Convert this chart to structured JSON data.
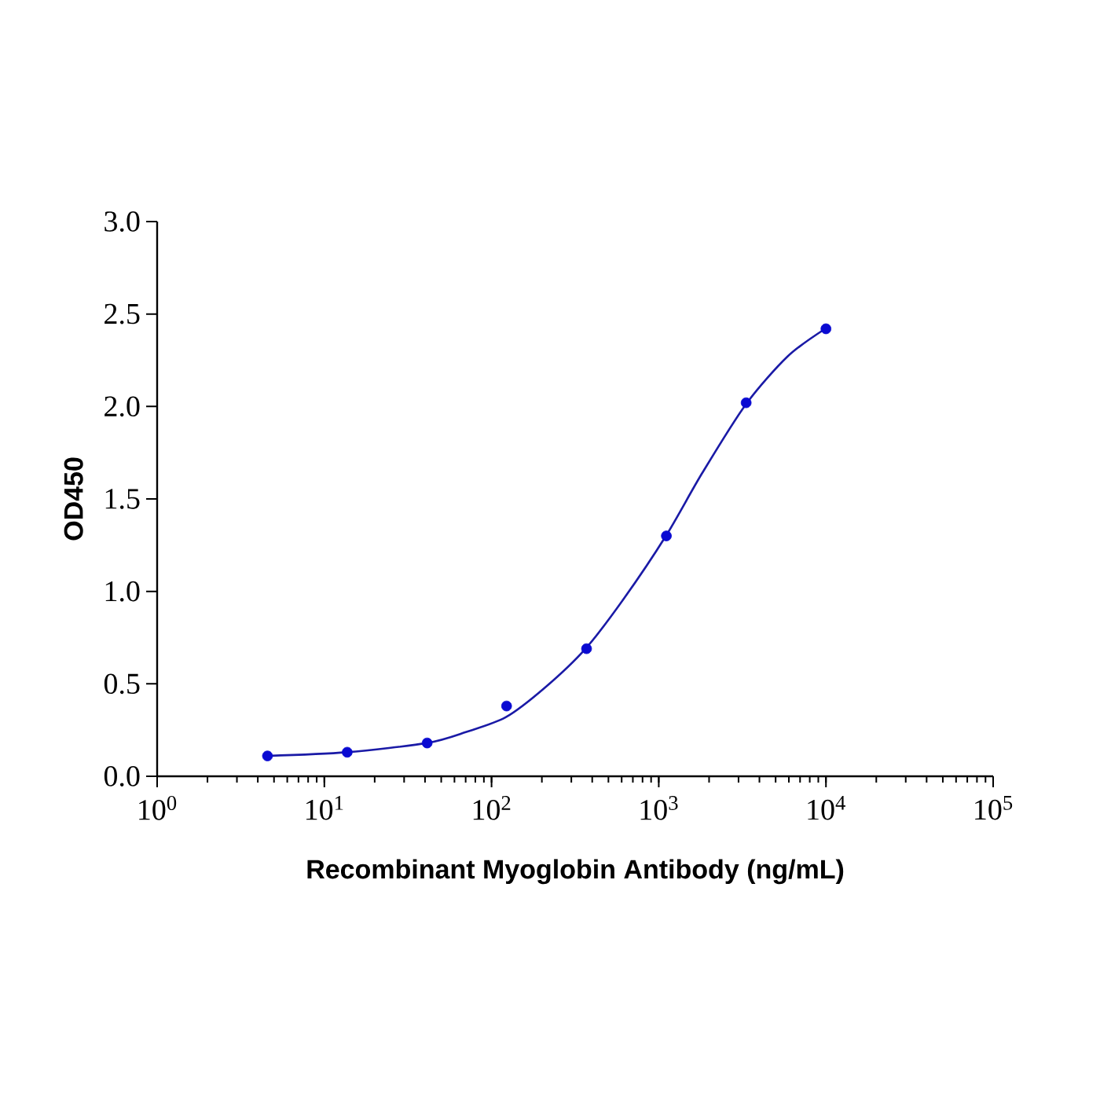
{
  "chart_data": {
    "type": "scatter",
    "xlabel": "Recombinant Myoglobin Antibody (ng/mL)",
    "ylabel": "OD450",
    "log": "x",
    "xlim": [
      1,
      100000
    ],
    "ylim": [
      0,
      3.0
    ],
    "xticks": [
      {
        "value": 1,
        "label": "10$^{0}$"
      },
      {
        "value": 10,
        "label": "10$^{1}$"
      },
      {
        "value": 100,
        "label": "10$^{2}$"
      },
      {
        "value": 1000,
        "label": "10$^{3}$"
      },
      {
        "value": 10000,
        "label": "10$^{4}$"
      },
      {
        "value": 100000,
        "label": "10$^{5}$"
      }
    ],
    "yticks": [
      {
        "value": 0,
        "label": "0.0"
      },
      {
        "value": 0.5,
        "label": "0.5"
      },
      {
        "value": 1.0,
        "label": "1.0"
      },
      {
        "value": 1.5,
        "label": "1.5"
      },
      {
        "value": 2.0,
        "label": "2.0"
      },
      {
        "value": 2.5,
        "label": "2.5"
      },
      {
        "value": 3.0,
        "label": "3.0"
      }
    ],
    "grid": false,
    "series": [
      {
        "type": "line",
        "marker": "none",
        "line_style": "solid",
        "color": "#1a1aa6",
        "x": [
          4.53,
          13.6,
          41.1,
          70.7,
          122,
          209,
          365,
          618,
          1104,
          1820,
          3311,
          5890,
          9890
        ],
        "values": [
          0.11,
          0.13,
          0.18,
          0.24,
          0.32,
          0.48,
          0.69,
          0.96,
          1.3,
          1.64,
          2.01,
          2.27,
          2.42
        ]
      },
      {
        "marker": "circle",
        "color": "#0a0ad2",
        "x": [
          4.57,
          13.7,
          41.2,
          123,
          370,
          1111,
          3333,
          10000
        ],
        "values": [
          0.11,
          0.13,
          0.18,
          0.38,
          0.69,
          1.3,
          2.02,
          2.42
        ]
      }
    ]
  }
}
